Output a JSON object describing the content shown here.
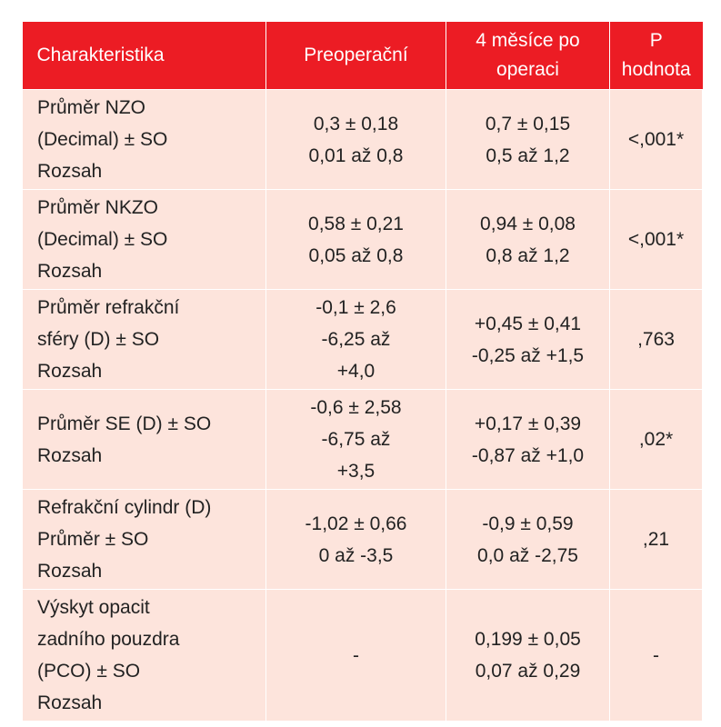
{
  "table": {
    "headers": [
      "Charakteristika",
      "Preoperační",
      "4 měsíce po operaci",
      "P hodnota"
    ],
    "rows": [
      {
        "name": [
          "Průměr NZO",
          "(Decimal) ± SO",
          "Rozsah"
        ],
        "pre": [
          "0,3 ± 0,18",
          "0,01 až 0,8"
        ],
        "post": [
          "0,7 ± 0,15",
          "0,5 až 1,2"
        ],
        "p": "<,001*"
      },
      {
        "name": [
          "Průměr NKZO",
          "(Decimal) ± SO",
          "Rozsah"
        ],
        "pre": [
          "0,58 ± 0,21",
          "0,05 až 0,8"
        ],
        "post": [
          "0,94 ± 0,08",
          "0,8 až 1,2"
        ],
        "p": "<,001*"
      },
      {
        "name": [
          "Průměr refrakční",
          "sféry (D) ± SO",
          "Rozsah"
        ],
        "pre": [
          "-0,1 ± 2,6",
          "-6,25 až",
          "+4,0"
        ],
        "post": [
          "+0,45 ± 0,41",
          "-0,25 až +1,5"
        ],
        "p": ",763"
      },
      {
        "name": [
          "Průměr SE (D) ± SO",
          "Rozsah"
        ],
        "pre": [
          "-0,6 ± 2,58",
          "-6,75 až",
          "+3,5"
        ],
        "post": [
          "+0,17 ± 0,39",
          "-0,87 až +1,0"
        ],
        "p": ",02*"
      },
      {
        "name": [
          "Refrakční cylindr (D)",
          "Průměr ± SO",
          "Rozsah"
        ],
        "pre": [
          "-1,02 ± 0,66",
          "0 až -3,5"
        ],
        "post": [
          "-0,9 ± 0,59",
          "0,0 až -2,75"
        ],
        "p": ",21"
      },
      {
        "name": [
          "Výskyt opacit",
          "zadního pouzdra",
          "(PCO) ± SO",
          "Rozsah"
        ],
        "pre": [
          "-"
        ],
        "post": [
          "0,199 ± 0,05",
          "0,07 až 0,29"
        ],
        "p": "-"
      }
    ]
  }
}
